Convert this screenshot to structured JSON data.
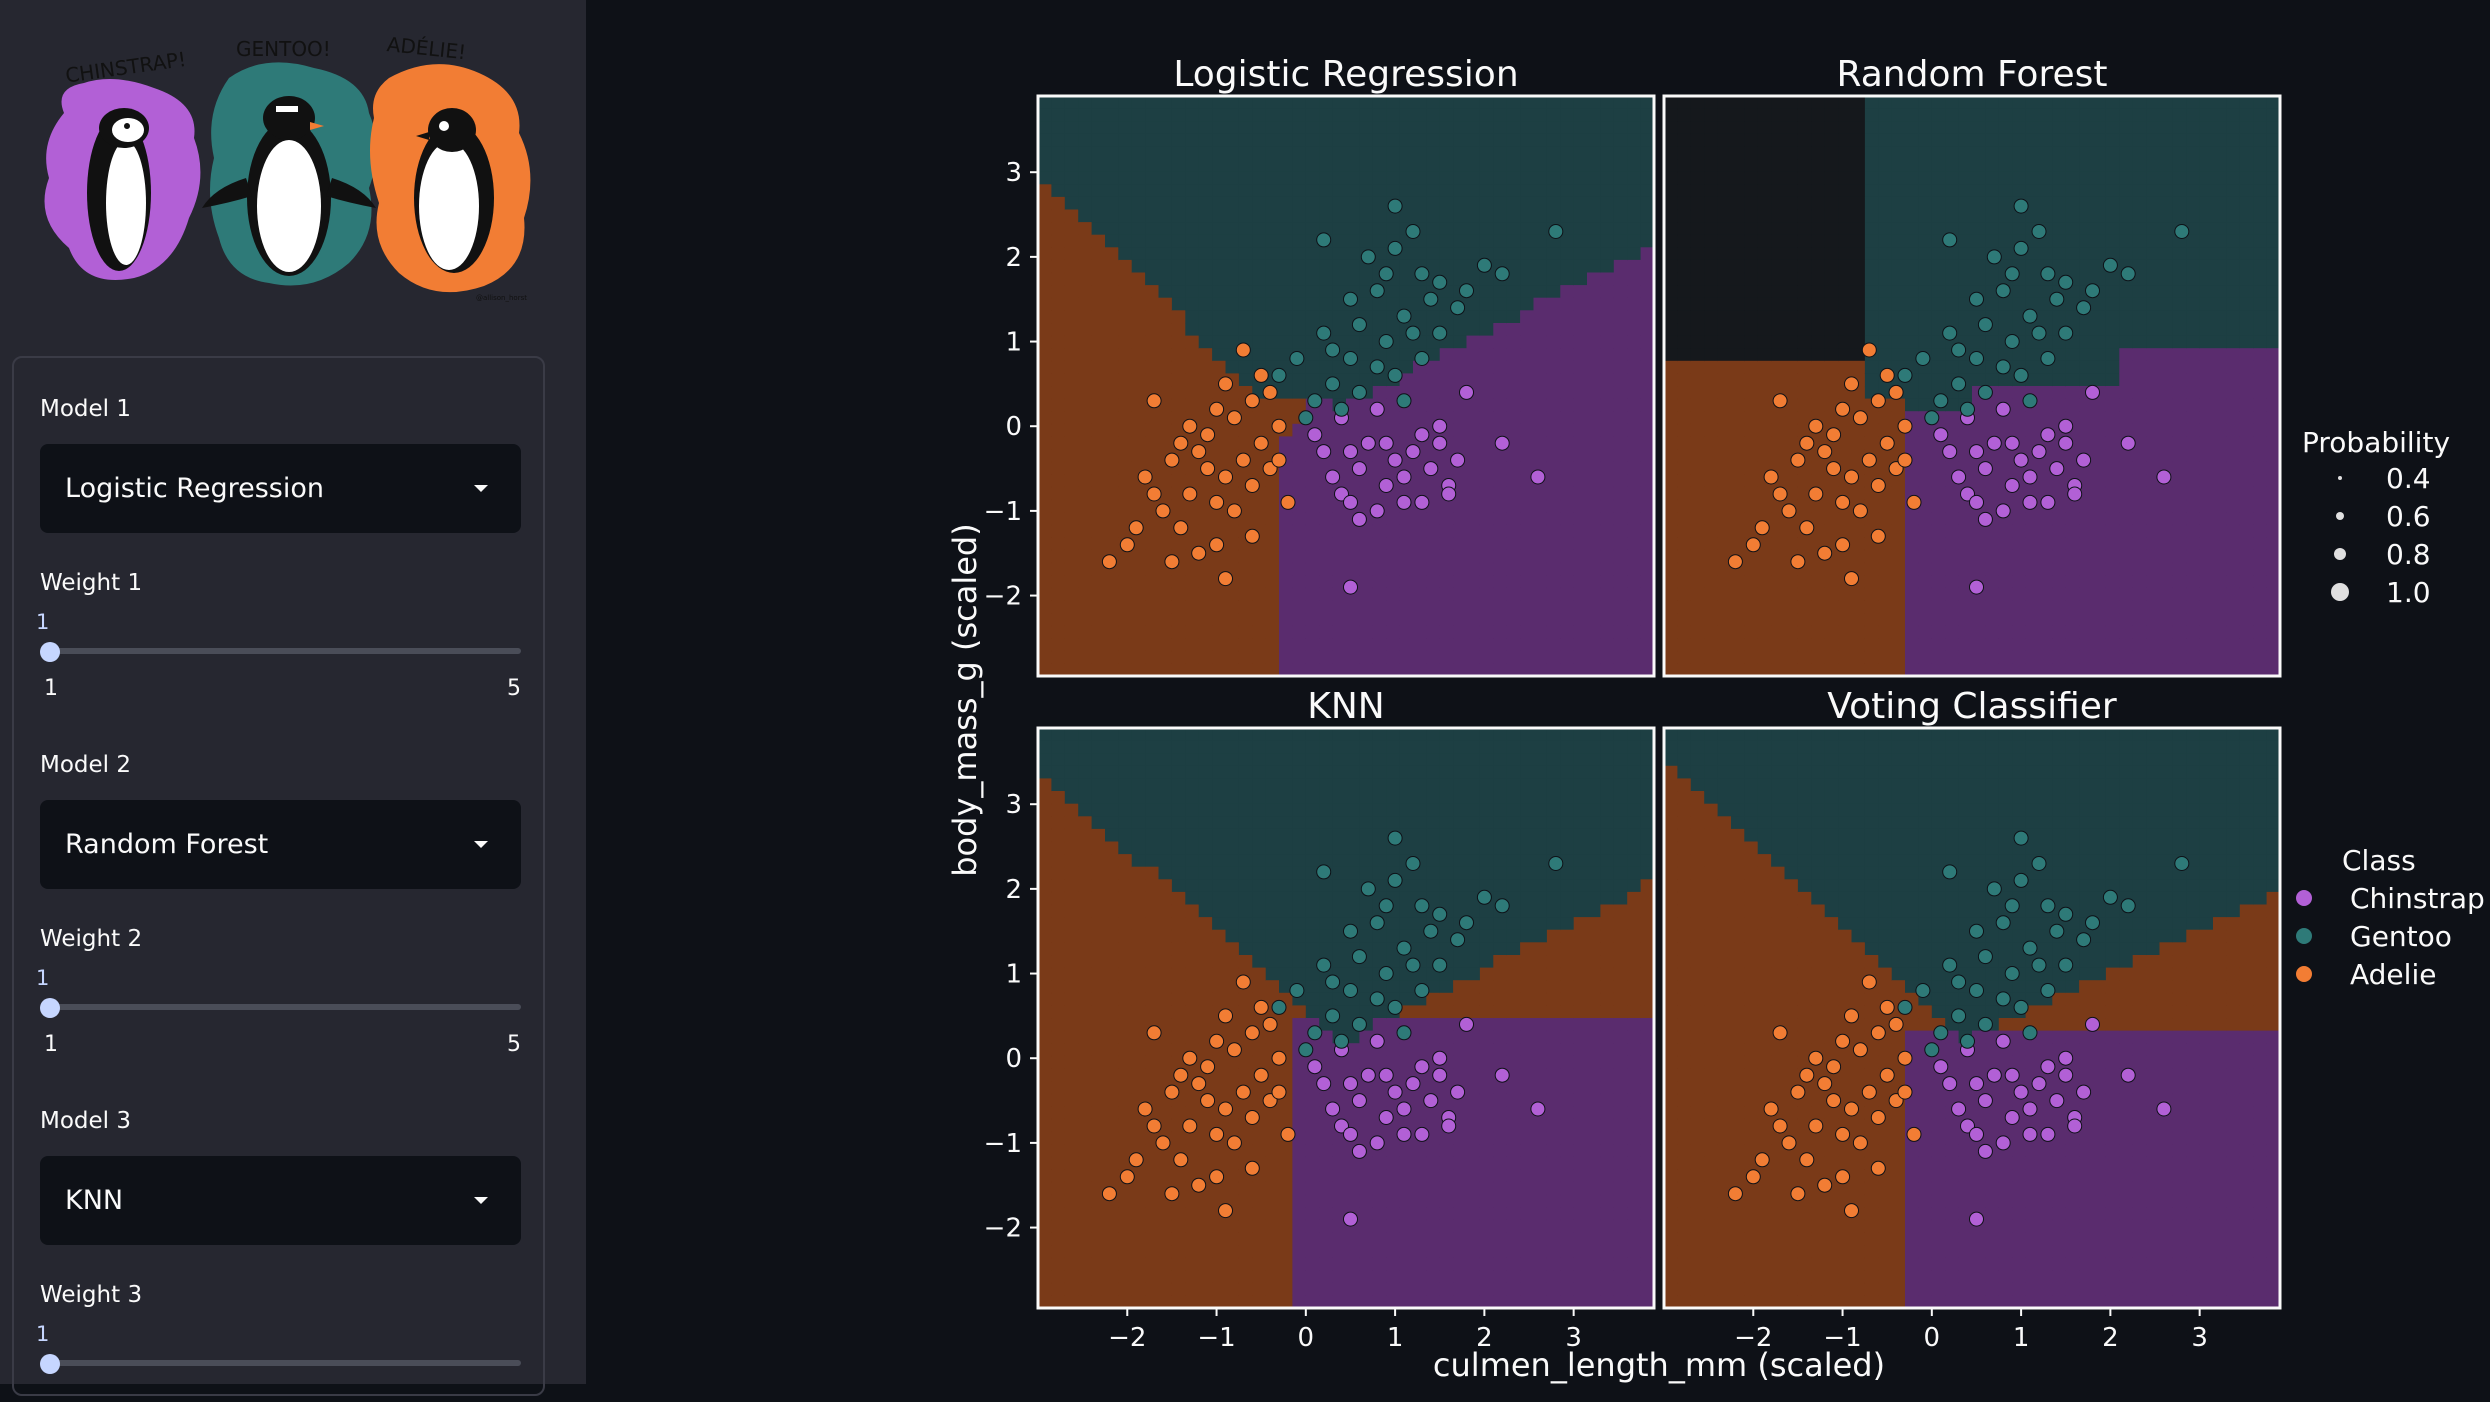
{
  "sidebar": {
    "logo_names": [
      "CHINSTRAP!",
      "GENTOO!",
      "ADÉLIE!"
    ],
    "logo_credit": "@allison_horst",
    "controls": [
      {
        "model_label": "Model 1",
        "model_value": "Logistic Regression",
        "weight_label": "Weight 1",
        "weight_value": "1",
        "min": "1",
        "max": "5",
        "weight_fraction": 0
      },
      {
        "model_label": "Model 2",
        "model_value": "Random Forest",
        "weight_label": "Weight 2",
        "weight_value": "1",
        "min": "1",
        "max": "5",
        "weight_fraction": 0
      },
      {
        "model_label": "Model 3",
        "model_value": "KNN",
        "weight_label": "Weight 3",
        "weight_value": "1",
        "weight_fraction": 0
      }
    ]
  },
  "colors": {
    "chinstrap": "#b260d6",
    "gentoo": "#2e7a78",
    "adelie": "#f27d34",
    "chinstrap_region": "#5a2c6e",
    "gentoo_region": "#1d3f43",
    "adelie_region": "#7a3a18",
    "accent": "#c6d6ff"
  },
  "chart_data": {
    "type": "scatter",
    "description_panels": [
      "Logistic Regression",
      "Random Forest",
      "KNN",
      "Voting Classifier"
    ],
    "xlabel": "culmen_length_mm (scaled)",
    "ylabel": "body_mass_g (scaled)",
    "xlim": [
      -3.0,
      3.9
    ],
    "ylim": [
      -2.95,
      3.9
    ],
    "xticks": [
      "−2",
      "−1",
      "0",
      "1",
      "2",
      "3"
    ],
    "yticks": [
      "3",
      "2",
      "1",
      "0",
      "−1",
      "−2"
    ],
    "xtick_values": [
      -2,
      -1,
      0,
      1,
      2,
      3
    ],
    "ytick_values": [
      3,
      2,
      1,
      0,
      -1,
      -2
    ],
    "legend_probability": {
      "title": "Probability",
      "labels": [
        "0.4",
        "0.6",
        "0.8",
        "1.0"
      ]
    },
    "legend_class": {
      "title": "Class",
      "labels": [
        "Chinstrap",
        "Gentoo",
        "Adelie"
      ]
    },
    "series": [
      {
        "name": "Chinstrap",
        "color_key": "chinstrap",
        "points": [
          [
            0.3,
            -0.6
          ],
          [
            0.5,
            -0.3
          ],
          [
            0.4,
            -0.8
          ],
          [
            0.6,
            -0.5
          ],
          [
            0.7,
            -0.2
          ],
          [
            0.8,
            -1.0
          ],
          [
            0.9,
            -0.7
          ],
          [
            1.0,
            -0.4
          ],
          [
            1.1,
            -0.6
          ],
          [
            1.2,
            -0.3
          ],
          [
            1.3,
            -0.9
          ],
          [
            1.4,
            -0.5
          ],
          [
            1.5,
            -0.2
          ],
          [
            1.6,
            -0.7
          ],
          [
            1.3,
            -0.1
          ],
          [
            1.1,
            -0.9
          ],
          [
            0.9,
            -0.2
          ],
          [
            0.6,
            -1.1
          ],
          [
            0.5,
            -0.9
          ],
          [
            1.7,
            -0.4
          ],
          [
            1.5,
            0.0
          ],
          [
            0.2,
            -0.3
          ],
          [
            2.2,
            -0.2
          ],
          [
            2.6,
            -0.6
          ],
          [
            0.5,
            -1.9
          ],
          [
            0.8,
            0.2
          ],
          [
            1.6,
            -0.8
          ],
          [
            1.8,
            0.4
          ],
          [
            0.4,
            0.1
          ],
          [
            0.1,
            -0.1
          ]
        ]
      },
      {
        "name": "Gentoo",
        "color_key": "gentoo",
        "points": [
          [
            1.0,
            2.6
          ],
          [
            0.2,
            2.2
          ],
          [
            2.8,
            2.3
          ],
          [
            2.0,
            1.9
          ],
          [
            1.0,
            2.1
          ],
          [
            1.3,
            1.8
          ],
          [
            0.8,
            1.6
          ],
          [
            1.1,
            1.3
          ],
          [
            1.4,
            1.5
          ],
          [
            0.6,
            1.2
          ],
          [
            0.9,
            1.0
          ],
          [
            1.2,
            1.1
          ],
          [
            0.5,
            0.8
          ],
          [
            0.8,
            0.7
          ],
          [
            1.0,
            0.6
          ],
          [
            0.3,
            0.5
          ],
          [
            0.6,
            0.4
          ],
          [
            0.1,
            0.3
          ],
          [
            0.3,
            0.9
          ],
          [
            1.5,
            1.7
          ],
          [
            1.7,
            1.4
          ],
          [
            0.7,
            2.0
          ],
          [
            1.2,
            2.3
          ],
          [
            -0.1,
            0.8
          ],
          [
            -0.3,
            0.6
          ],
          [
            0.4,
            0.2
          ],
          [
            0.0,
            0.1
          ],
          [
            1.8,
            1.6
          ],
          [
            1.1,
            0.3
          ],
          [
            1.3,
            0.8
          ],
          [
            2.2,
            1.8
          ],
          [
            0.9,
            1.8
          ],
          [
            1.5,
            1.1
          ],
          [
            0.5,
            1.5
          ],
          [
            0.2,
            1.1
          ]
        ]
      },
      {
        "name": "Adelie",
        "color_key": "adelie",
        "points": [
          [
            -1.8,
            -0.6
          ],
          [
            -1.5,
            -0.4
          ],
          [
            -1.3,
            -0.8
          ],
          [
            -1.1,
            -0.5
          ],
          [
            -1.6,
            -1.0
          ],
          [
            -1.4,
            -1.2
          ],
          [
            -1.2,
            -0.3
          ],
          [
            -1.0,
            -0.9
          ],
          [
            -0.9,
            -0.6
          ],
          [
            -0.7,
            -0.4
          ],
          [
            -1.7,
            -0.8
          ],
          [
            -1.9,
            -1.2
          ],
          [
            -1.0,
            -1.4
          ],
          [
            -0.8,
            -1.0
          ],
          [
            -0.6,
            -0.7
          ],
          [
            -0.5,
            -0.2
          ],
          [
            -0.4,
            -0.5
          ],
          [
            -0.3,
            0.0
          ],
          [
            -0.6,
            0.3
          ],
          [
            -0.8,
            0.1
          ],
          [
            -1.0,
            0.2
          ],
          [
            -1.3,
            0.0
          ],
          [
            -1.7,
            0.3
          ],
          [
            -0.9,
            0.5
          ],
          [
            -0.5,
            0.6
          ],
          [
            -2.0,
            -1.4
          ],
          [
            -2.2,
            -1.6
          ],
          [
            -1.5,
            -1.6
          ],
          [
            -0.9,
            -1.8
          ],
          [
            -1.2,
            -1.5
          ],
          [
            -1.1,
            -0.1
          ],
          [
            -0.2,
            -0.9
          ],
          [
            -0.3,
            -0.4
          ],
          [
            -0.6,
            -1.3
          ],
          [
            -1.4,
            -0.2
          ],
          [
            -0.7,
            0.9
          ],
          [
            -0.4,
            0.4
          ]
        ]
      }
    ]
  }
}
